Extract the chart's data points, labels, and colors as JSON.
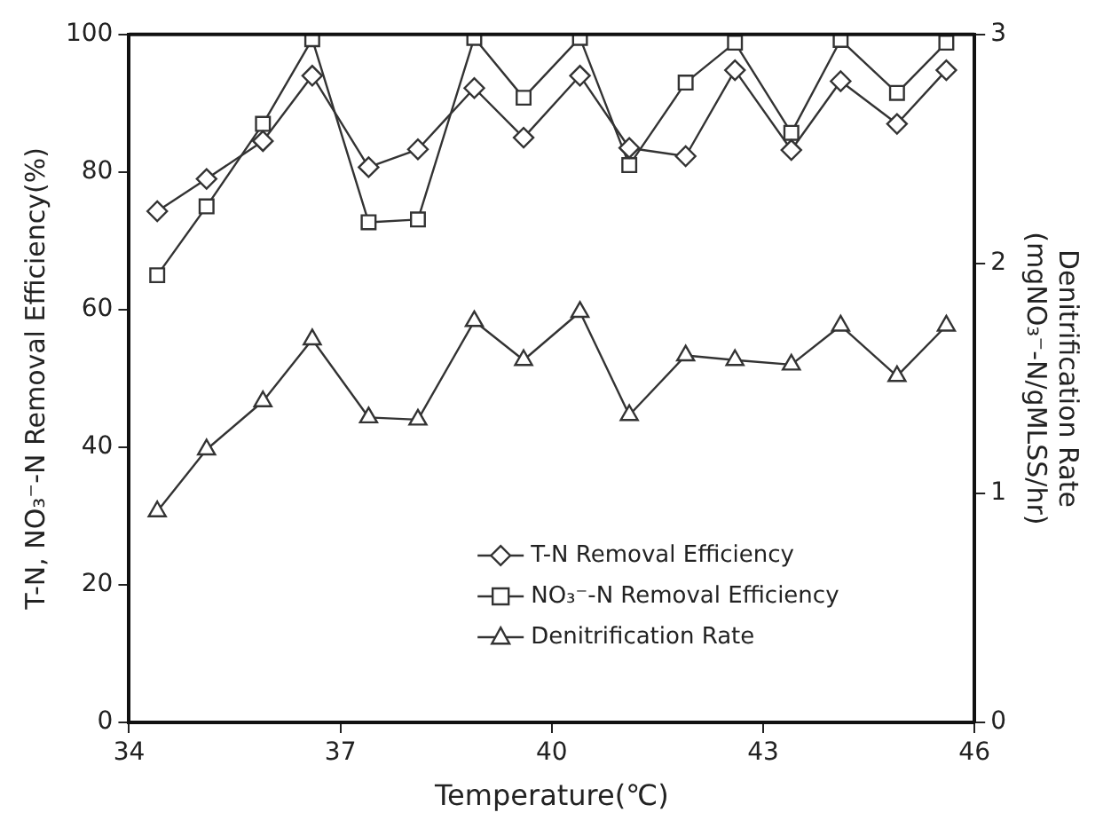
{
  "chart_data": {
    "type": "line",
    "xlabel": "Temperature(℃)",
    "ylabel": "T-N, NO₃⁻-N Removal Efficiency(%)",
    "y2label": "Denitrification Rate\n(mgNO₃⁻-N/gMLSS/hr)",
    "x": [
      34.4,
      35.1,
      35.9,
      36.6,
      37.4,
      38.1,
      38.9,
      39.6,
      40.4,
      41.1,
      41.9,
      42.6,
      43.4,
      44.1,
      44.9,
      45.6
    ],
    "series": [
      {
        "name": "T-N Removal Efficiency",
        "color": "#333333",
        "marker": "diamond",
        "values": [
          74.3,
          79,
          84.5,
          94,
          80.7,
          83.3,
          92.2,
          85,
          94,
          83.5,
          82.3,
          94.8,
          83.2,
          93.2,
          87,
          94.8
        ]
      },
      {
        "name": "NO₃⁻-N Removal Efficiency",
        "color": "#333333",
        "marker": "square",
        "values": [
          65,
          75,
          87,
          99.3,
          72.7,
          73.1,
          99.5,
          90.8,
          99.5,
          81,
          93,
          98.8,
          85.7,
          99.2,
          91.5,
          98.8
        ]
      },
      {
        "name": "Denitrification Rate",
        "color": "#333333",
        "marker": "triangle",
        "axis": "y2",
        "values": [
          0.92,
          1.19,
          1.4,
          1.67,
          1.33,
          1.32,
          1.75,
          1.58,
          1.79,
          1.34,
          1.6,
          1.58,
          1.56,
          1.73,
          1.51,
          1.73
        ]
      }
    ],
    "xlim": [
      34,
      46
    ],
    "xticks": [
      34,
      37,
      40,
      43,
      46
    ],
    "ylim": [
      0,
      100
    ],
    "yticks": [
      0,
      20,
      40,
      60,
      80,
      100
    ],
    "y2lim": [
      0,
      3
    ],
    "y2ticks": [
      0,
      1,
      2,
      3
    ],
    "grid": false,
    "legend": "bottom right",
    "line_style": "solid"
  }
}
